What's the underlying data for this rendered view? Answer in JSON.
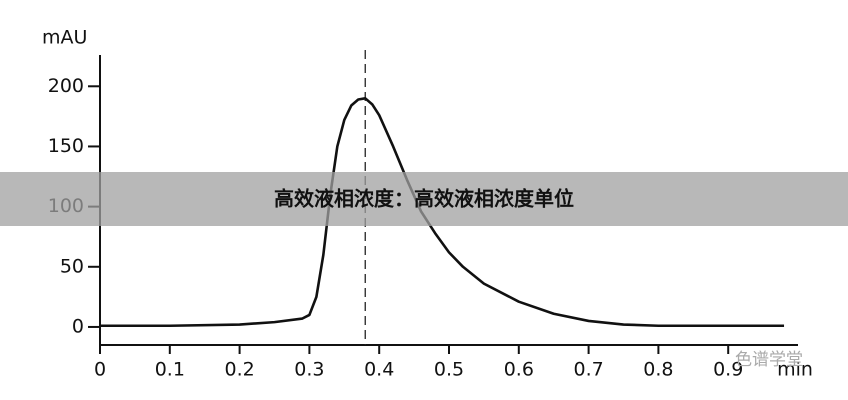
{
  "chart_data": {
    "type": "line",
    "title": "高效液相浓度：高效液相浓度单位",
    "y_label": "mAU",
    "x_label": "min",
    "x": [
      0,
      0.1,
      0.2,
      0.25,
      0.29,
      0.3,
      0.31,
      0.32,
      0.33,
      0.34,
      0.35,
      0.36,
      0.37,
      0.38,
      0.39,
      0.4,
      0.42,
      0.44,
      0.46,
      0.48,
      0.5,
      0.52,
      0.55,
      0.6,
      0.65,
      0.7,
      0.75,
      0.8,
      0.9,
      0.98
    ],
    "values": [
      1,
      1,
      2,
      4,
      7,
      10,
      25,
      60,
      110,
      150,
      172,
      184,
      189,
      190,
      185,
      176,
      150,
      122,
      96,
      78,
      62,
      50,
      36,
      21,
      11,
      5,
      2,
      1,
      1,
      1
    ],
    "color": "#111111",
    "peak_marker": 0.38,
    "xlim": [
      0,
      1.0
    ],
    "xticks": [
      0,
      0.1,
      0.2,
      0.3,
      0.4,
      0.5,
      0.6,
      0.7,
      0.8,
      0.9
    ],
    "ylim": [
      -15,
      226
    ],
    "yticks": [
      0,
      50,
      100,
      150,
      200
    ]
  },
  "watermark": "色谱学堂"
}
